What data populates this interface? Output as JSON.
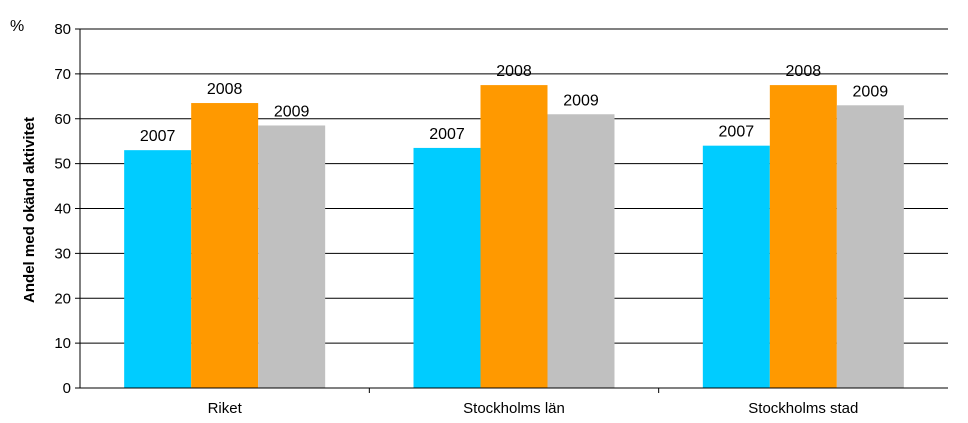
{
  "chart_data": {
    "type": "bar",
    "unit": "%",
    "ylabel": "Andel med okänd aktivitet",
    "xlabel": "",
    "ylim": [
      0,
      80
    ],
    "yticks": [
      0,
      10,
      20,
      30,
      40,
      50,
      60,
      70,
      80
    ],
    "grid": true,
    "categories": [
      "Riket",
      "Stockholms län",
      "Stockholms stad"
    ],
    "series": [
      {
        "name": "2007",
        "color": "#00ccff",
        "values": [
          53,
          53.5,
          54
        ]
      },
      {
        "name": "2008",
        "color": "#ff9900",
        "values": [
          63.5,
          67.5,
          67.5
        ]
      },
      {
        "name": "2009",
        "color": "#c0c0c0",
        "values": [
          58.5,
          61,
          63
        ]
      }
    ]
  }
}
